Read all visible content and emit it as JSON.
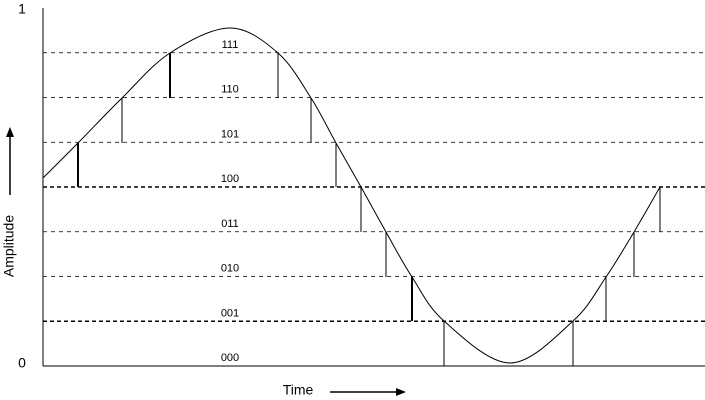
{
  "axis": {
    "max": "1",
    "min": "0",
    "y_label": "Amplitude",
    "x_label": "Time"
  },
  "levels": [
    "111",
    "110",
    "101",
    "100",
    "011",
    "010",
    "001",
    "000"
  ]
}
